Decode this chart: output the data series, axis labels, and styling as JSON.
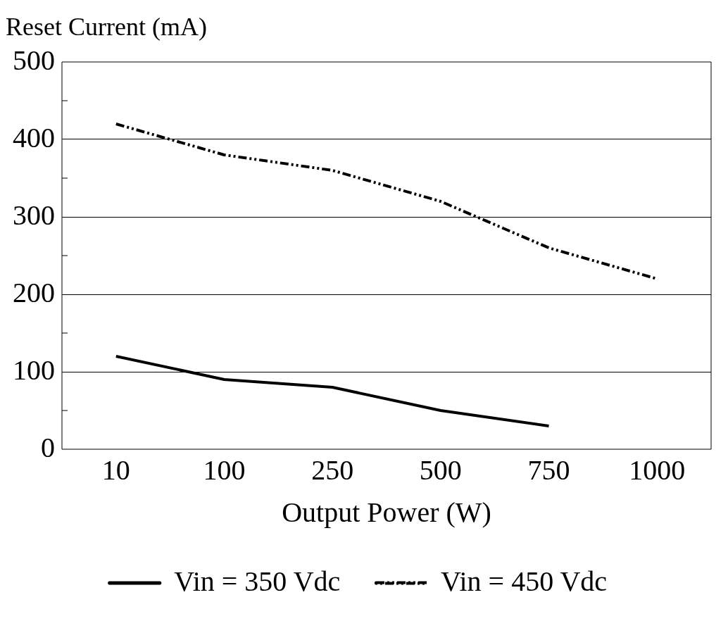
{
  "chart_data": {
    "type": "line",
    "xlabel": "Output Power (W)",
    "ylabel": "Reset Current (mA)",
    "categories": [
      "10",
      "100",
      "250",
      "500",
      "750",
      "1000"
    ],
    "series": [
      {
        "name": "Vin = 350 Vdc",
        "color": "#000000",
        "line_style": "solid",
        "values": [
          120,
          90,
          80,
          50,
          30,
          null
        ]
      },
      {
        "name": "Vin = 450 Vdc",
        "color": "#000000",
        "line_style": "dashed",
        "values": [
          420,
          380,
          360,
          320,
          260,
          220
        ]
      }
    ],
    "ylim": [
      0,
      500
    ],
    "yticks": [
      0,
      {
        "value": 50,
        "label": null
      },
      100,
      {
        "value": 150,
        "label": null
      },
      200,
      {
        "value": 250,
        "label": null
      },
      300,
      {
        "value": 350,
        "label": null
      },
      400,
      {
        "value": 450,
        "label": null
      },
      500
    ],
    "grid": "y",
    "legend": "bottom",
    "marker": "none"
  }
}
